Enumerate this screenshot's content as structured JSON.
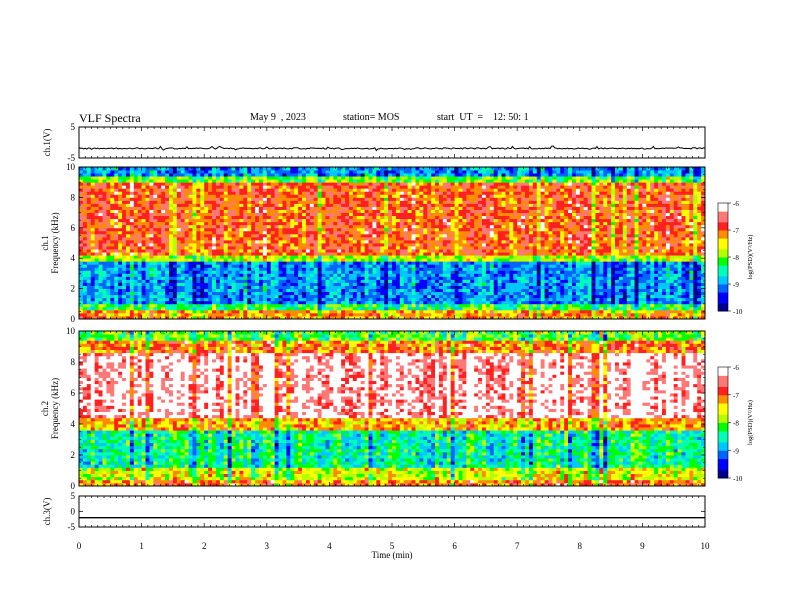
{
  "header": {
    "title": "VLF Spectra",
    "date": "May 9  , 2023",
    "station": "station= MOS",
    "start": "start  UT  =    12: 50: 1"
  },
  "colors": {
    "spectrogram": [
      "#00008c",
      "#0000ff",
      "#0064ff",
      "#00c8ff",
      "#00ffb4",
      "#00ff00",
      "#b4ff00",
      "#ffff00",
      "#ff8c00",
      "#ff2020",
      "#ff7878",
      "#ffffff"
    ]
  },
  "chart_data": [
    {
      "type": "line",
      "panel": "ch1-waveform",
      "ylabel": "ch.1(V)",
      "ylim": [
        -5,
        5
      ],
      "yticks": [
        "5",
        "-5"
      ],
      "xlim": [
        0,
        10
      ],
      "series": [
        {
          "values": "near-constant baseline ~0 V with small spikes"
        }
      ]
    },
    {
      "type": "heatmap",
      "panel": "ch1-spectrogram",
      "ylabel": "ch.1\nFrequency (kHz)",
      "ylim": [
        0,
        10
      ],
      "yticks": [
        "0",
        "2",
        "4",
        "6",
        "8",
        "10"
      ],
      "xlim": [
        0,
        10
      ],
      "colorbar": {
        "label": "log(PSD)(V²/Hz)",
        "ticks": [
          "-6",
          "-7",
          "-8",
          "-9",
          "-10"
        ],
        "range": [
          -10,
          -6
        ]
      },
      "bands": [
        {
          "from": 9.4,
          "to": 10,
          "level": -9.0
        },
        {
          "from": 9.0,
          "to": 9.4,
          "level": -8.0
        },
        {
          "from": 4.3,
          "to": 9.0,
          "level": -6.9
        },
        {
          "from": 3.8,
          "to": 4.3,
          "level": -7.8
        },
        {
          "from": 1.0,
          "to": 3.8,
          "level": -9.0
        },
        {
          "from": 0.6,
          "to": 1.0,
          "level": -8.2
        },
        {
          "from": 0.0,
          "to": 0.6,
          "level": -7.2
        }
      ]
    },
    {
      "type": "heatmap",
      "panel": "ch2-spectrogram",
      "ylabel": "ch.2\nFrequency (kHz)",
      "ylim": [
        0,
        10
      ],
      "yticks": [
        "0",
        "2",
        "4",
        "6",
        "8",
        "10"
      ],
      "xlim": [
        0,
        10
      ],
      "colorbar": {
        "label": "log(PSD)(V²/Hz)",
        "ticks": [
          "-6",
          "-7",
          "-8",
          "-9",
          "-10"
        ],
        "range": [
          -10,
          -6
        ]
      },
      "bands": [
        {
          "from": 9.5,
          "to": 10,
          "level": -8.0
        },
        {
          "from": 8.6,
          "to": 9.5,
          "level": -7.0
        },
        {
          "from": 4.4,
          "to": 8.6,
          "level": -6.2
        },
        {
          "from": 3.7,
          "to": 4.4,
          "level": -7.2
        },
        {
          "from": 1.2,
          "to": 3.7,
          "level": -8.4
        },
        {
          "from": 0.5,
          "to": 1.2,
          "level": -7.6
        },
        {
          "from": 0.0,
          "to": 0.5,
          "level": -7.0
        }
      ]
    },
    {
      "type": "line",
      "panel": "ch3-waveform",
      "ylabel": "ch.3(V)",
      "ylim": [
        -5,
        5
      ],
      "yticks": [
        "5",
        "0",
        "-5"
      ],
      "xlim": [
        0,
        10
      ],
      "series": [
        {
          "values": "flat line at about -2 V"
        }
      ]
    }
  ],
  "xaxis": {
    "label": "Time  (min)",
    "ticks": [
      "0",
      "1",
      "2",
      "3",
      "4",
      "5",
      "6",
      "7",
      "8",
      "9",
      "10"
    ]
  }
}
